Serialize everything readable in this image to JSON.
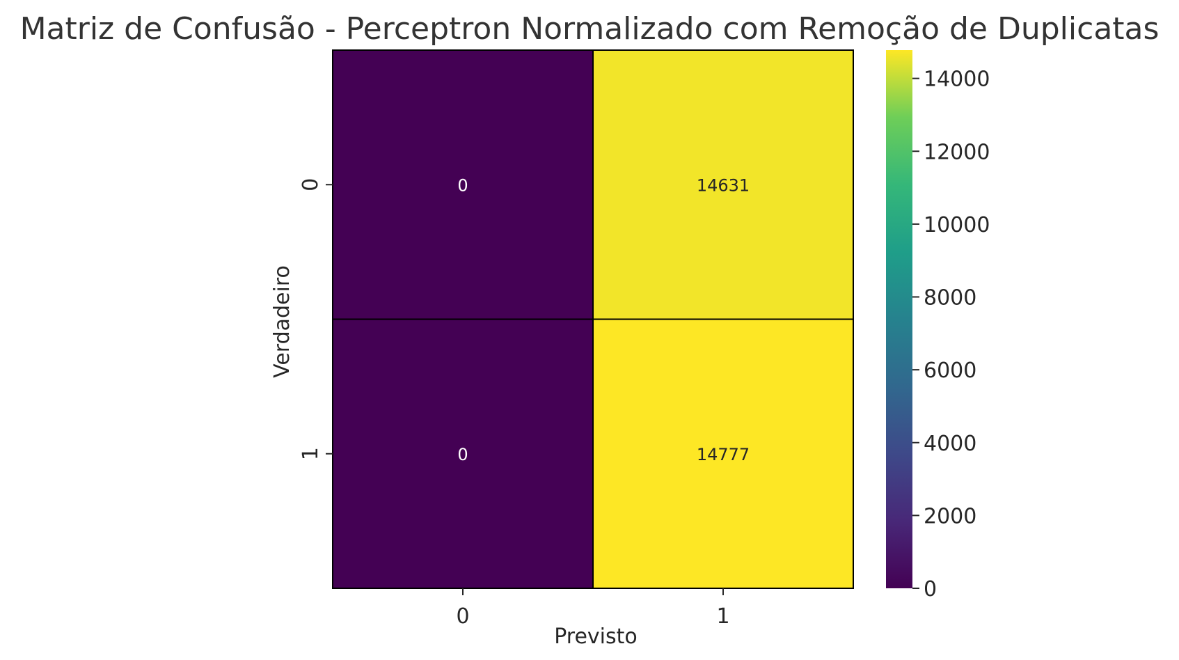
{
  "chart_data": {
    "type": "heatmap",
    "title": "Matriz de Confusão - Perceptron Normalizado com Remoção de Duplicatas",
    "xlabel": "Previsto",
    "ylabel": "Verdadeiro",
    "x_categories": [
      "0",
      "1"
    ],
    "y_categories": [
      "0",
      "1"
    ],
    "matrix": [
      [
        0,
        14631
      ],
      [
        0,
        14777
      ]
    ],
    "cell_labels": [
      [
        "0",
        "14631"
      ],
      [
        "0",
        "14777"
      ]
    ],
    "colormap": "viridis",
    "colorbar": {
      "range": [
        0,
        14777
      ],
      "ticks": [
        0,
        2000,
        4000,
        6000,
        8000,
        10000,
        12000,
        14000
      ],
      "tick_labels": [
        "0",
        "2000",
        "4000",
        "6000",
        "8000",
        "10000",
        "12000",
        "14000"
      ]
    },
    "colors": {
      "low": "#440154",
      "high": "#fde725",
      "low_text": "#ffffff",
      "high_text": "#262626",
      "cell_border": "#000000"
    },
    "grid": false
  }
}
